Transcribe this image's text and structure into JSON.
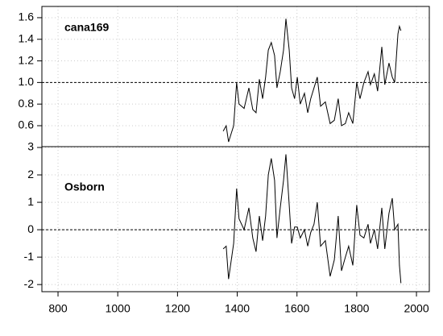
{
  "chart_data": [
    {
      "type": "line",
      "label": "cana169",
      "color": "#000000",
      "grid": true,
      "reference_line": 1,
      "x": [
        1353,
        1363,
        1371,
        1388,
        1398,
        1406,
        1423,
        1439,
        1452,
        1463,
        1474,
        1485,
        1495,
        1504,
        1514,
        1525,
        1533,
        1544,
        1555,
        1563,
        1574,
        1582,
        1592,
        1601,
        1611,
        1625,
        1636,
        1646,
        1657,
        1668,
        1679,
        1695,
        1711,
        1725,
        1738,
        1749,
        1762,
        1773,
        1787,
        1800,
        1811,
        1824,
        1838,
        1846,
        1859,
        1870,
        1884,
        1894,
        1908,
        1919,
        1927,
        1938,
        1943,
        1948
      ],
      "values": [
        0.55,
        0.6,
        0.45,
        0.6,
        1.0,
        0.8,
        0.76,
        0.95,
        0.75,
        0.72,
        1.03,
        0.85,
        1.05,
        1.3,
        1.37,
        1.25,
        0.95,
        1.1,
        1.3,
        1.59,
        1.3,
        0.95,
        0.85,
        1.05,
        0.8,
        0.9,
        0.72,
        0.85,
        0.95,
        1.05,
        0.78,
        0.82,
        0.62,
        0.65,
        0.85,
        0.6,
        0.62,
        0.72,
        0.62,
        1.0,
        0.85,
        1.0,
        1.1,
        0.98,
        1.08,
        0.92,
        1.33,
        0.98,
        1.18,
        1.05,
        1.0,
        1.45,
        1.52,
        1.48
      ],
      "xlim": [
        746,
        2043
      ],
      "xticks": [
        800,
        1000,
        1200,
        1400,
        1600,
        1800,
        2000
      ],
      "ylim": [
        0.406,
        1.704
      ],
      "yticks": [
        0.6,
        0.8,
        {
          "value": 1,
          "label": "1.0"
        },
        1.2,
        1.4,
        1.6
      ]
    },
    {
      "type": "line",
      "label": "Osborn",
      "color": "#000000",
      "grid": true,
      "reference_line": 0,
      "x": [
        1353,
        1363,
        1371,
        1388,
        1398,
        1406,
        1423,
        1439,
        1452,
        1463,
        1474,
        1485,
        1495,
        1504,
        1514,
        1525,
        1533,
        1544,
        1555,
        1563,
        1574,
        1582,
        1592,
        1601,
        1611,
        1625,
        1636,
        1646,
        1657,
        1668,
        1679,
        1695,
        1711,
        1725,
        1738,
        1749,
        1762,
        1773,
        1787,
        1800,
        1811,
        1824,
        1838,
        1846,
        1859,
        1870,
        1884,
        1894,
        1908,
        1919,
        1927,
        1938,
        1943,
        1948
      ],
      "values": [
        -0.7,
        -0.6,
        -1.8,
        -0.5,
        1.5,
        0.4,
        0.0,
        0.8,
        -0.3,
        -0.8,
        0.5,
        -0.4,
        0.5,
        2.0,
        2.6,
        1.8,
        -0.3,
        0.8,
        1.8,
        2.75,
        0.9,
        -0.5,
        0.1,
        0.1,
        -0.3,
        0.0,
        -0.6,
        -0.1,
        0.2,
        1.0,
        -0.6,
        -0.4,
        -1.7,
        -1.1,
        0.5,
        -1.5,
        -1.0,
        -0.6,
        -1.3,
        0.9,
        -0.2,
        -0.3,
        0.2,
        -0.5,
        0.0,
        -0.7,
        0.8,
        -0.7,
        0.6,
        1.15,
        0.0,
        0.2,
        -1.3,
        -1.95
      ],
      "xlim": [
        746,
        2043
      ],
      "xticks": [
        800,
        1000,
        1200,
        1400,
        1600,
        1800,
        2000
      ],
      "ylim": [
        -2.26,
        3.03
      ],
      "yticks": [
        -2,
        -1,
        0,
        1,
        2,
        3
      ]
    }
  ]
}
